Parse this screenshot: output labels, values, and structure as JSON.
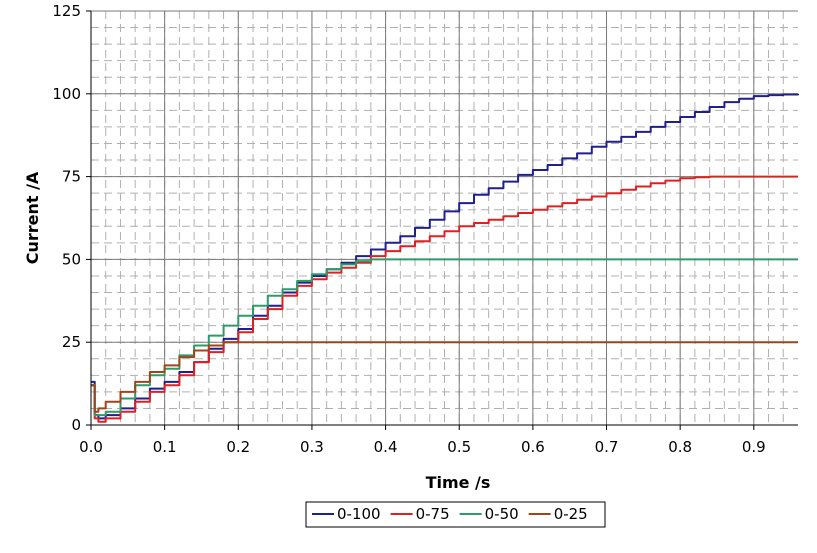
{
  "chart_data": {
    "type": "line",
    "xlabel": "Time /s",
    "ylabel": "Current /A",
    "xlim": [
      0.0,
      0.96
    ],
    "ylim": [
      0,
      125
    ],
    "x_ticks": [
      0.0,
      0.1,
      0.2,
      0.3,
      0.4,
      0.5,
      0.6,
      0.7,
      0.8,
      0.9
    ],
    "x_tick_labels": [
      "0.0",
      "0.1",
      "0.2",
      "0.3",
      "0.4",
      "0.5",
      "0.6",
      "0.7",
      "0.8",
      "0.9"
    ],
    "y_ticks": [
      0,
      25,
      50,
      75,
      100,
      125
    ],
    "y_tick_labels": [
      "0",
      "25",
      "50",
      "75",
      "100",
      "125"
    ],
    "grid": "major solid, minor dashed",
    "legend_position": "bottom-center",
    "series": [
      {
        "name": "0-100",
        "color": "#1f1f8f",
        "x": [
          0.0,
          0.005,
          0.01,
          0.02,
          0.04,
          0.06,
          0.08,
          0.1,
          0.12,
          0.14,
          0.16,
          0.18,
          0.2,
          0.22,
          0.24,
          0.26,
          0.28,
          0.3,
          0.32,
          0.34,
          0.36,
          0.38,
          0.4,
          0.42,
          0.44,
          0.46,
          0.48,
          0.5,
          0.52,
          0.54,
          0.56,
          0.58,
          0.6,
          0.62,
          0.64,
          0.66,
          0.68,
          0.7,
          0.72,
          0.74,
          0.76,
          0.78,
          0.8,
          0.82,
          0.84,
          0.86,
          0.88,
          0.9,
          0.92,
          0.94,
          0.96
        ],
        "y": [
          13,
          3,
          2,
          3,
          5,
          8,
          11,
          13,
          16,
          19,
          23,
          26,
          29,
          33,
          36,
          40,
          43,
          45,
          47,
          49,
          51,
          53,
          55,
          57,
          59.5,
          62,
          64.5,
          67,
          69.5,
          71.5,
          73.5,
          75.5,
          77,
          78.5,
          80.5,
          82,
          84,
          85.5,
          87,
          88.5,
          90,
          91.5,
          93,
          94.5,
          96,
          97.5,
          98.5,
          99.3,
          99.6,
          99.8,
          100
        ]
      },
      {
        "name": "0-75",
        "color": "#e02020",
        "x": [
          0.0,
          0.005,
          0.01,
          0.02,
          0.04,
          0.06,
          0.08,
          0.1,
          0.12,
          0.14,
          0.16,
          0.18,
          0.2,
          0.22,
          0.24,
          0.26,
          0.28,
          0.3,
          0.32,
          0.34,
          0.36,
          0.38,
          0.4,
          0.42,
          0.44,
          0.46,
          0.48,
          0.5,
          0.52,
          0.54,
          0.56,
          0.58,
          0.6,
          0.62,
          0.64,
          0.66,
          0.68,
          0.7,
          0.72,
          0.74,
          0.76,
          0.78,
          0.8,
          0.82,
          0.84,
          0.86,
          0.88,
          0.9,
          0.92,
          0.94,
          0.96
        ],
        "y": [
          12,
          2,
          1,
          2,
          4,
          7,
          10,
          12,
          15,
          19,
          22,
          25,
          28,
          32,
          35,
          39,
          42,
          44,
          46,
          47.5,
          49,
          51,
          52.5,
          54,
          55.5,
          57,
          58.5,
          60,
          61,
          62,
          63,
          64,
          65,
          66,
          67,
          68,
          69,
          70,
          71,
          72,
          73,
          73.8,
          74.5,
          74.8,
          75,
          75,
          75,
          75,
          75,
          75,
          75
        ]
      },
      {
        "name": "0-50",
        "color": "#2e9a6a",
        "x": [
          0.0,
          0.005,
          0.01,
          0.02,
          0.04,
          0.06,
          0.08,
          0.1,
          0.12,
          0.14,
          0.16,
          0.18,
          0.2,
          0.22,
          0.24,
          0.26,
          0.28,
          0.3,
          0.32,
          0.34,
          0.36,
          0.38,
          0.4,
          0.45,
          0.5,
          0.6,
          0.7,
          0.8,
          0.9,
          0.96
        ],
        "y": [
          12,
          3,
          3,
          4,
          8,
          12,
          15,
          17,
          21,
          24,
          27,
          30,
          33,
          36,
          39,
          41,
          43.5,
          45.5,
          47,
          48.5,
          49.5,
          50,
          50,
          50,
          50,
          50,
          50,
          50,
          50,
          50
        ]
      },
      {
        "name": "0-25",
        "color": "#a0441a",
        "x": [
          0.0,
          0.005,
          0.01,
          0.02,
          0.04,
          0.06,
          0.08,
          0.1,
          0.12,
          0.14,
          0.16,
          0.18,
          0.2,
          0.25,
          0.3,
          0.4,
          0.5,
          0.6,
          0.7,
          0.8,
          0.9,
          0.96
        ],
        "y": [
          12,
          4,
          5,
          7,
          10,
          13,
          16,
          18,
          20.5,
          22.5,
          24,
          25,
          25,
          25,
          25,
          25,
          25,
          25,
          25,
          25,
          25,
          25
        ]
      }
    ]
  }
}
